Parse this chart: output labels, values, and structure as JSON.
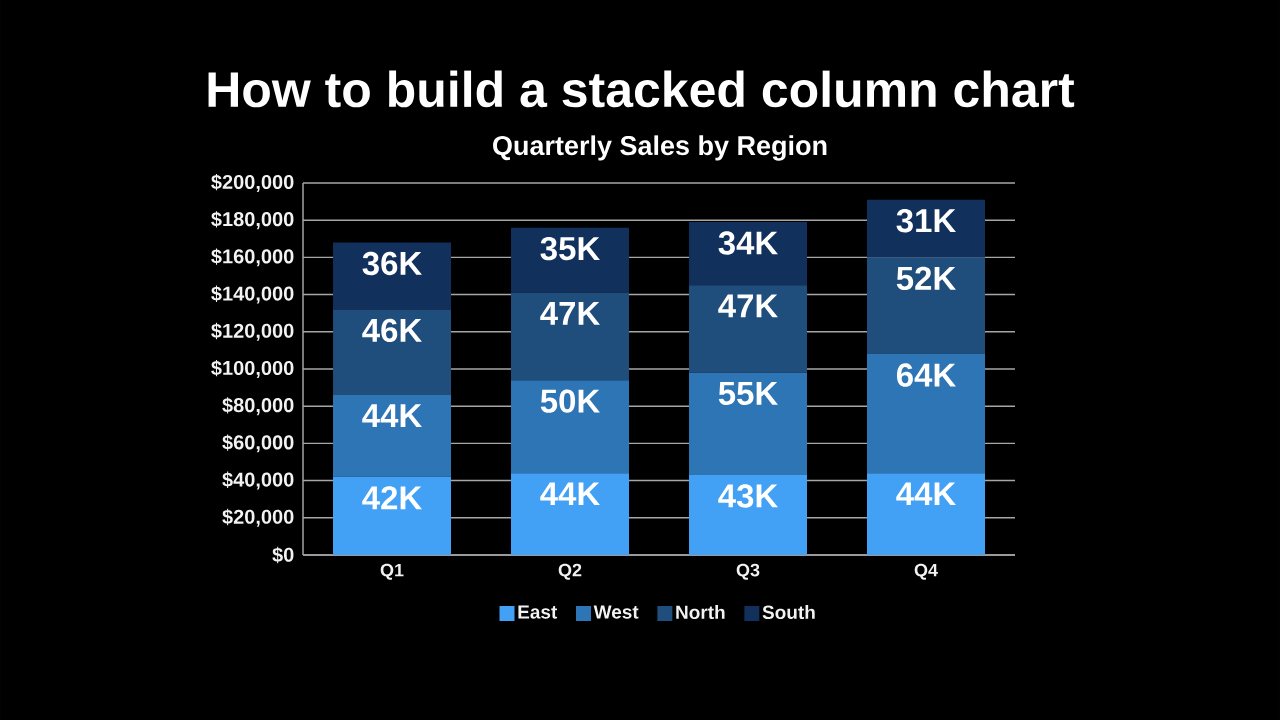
{
  "chart_data": {
    "type": "bar",
    "title": "How to build a stacked column chart",
    "subtitle": "Quarterly Sales by Region",
    "categories": [
      "Q1",
      "Q2",
      "Q3",
      "Q4"
    ],
    "stacked": true,
    "series": [
      {
        "name": "East",
        "color": "#42a0f5",
        "values": [
          42000,
          44000,
          43000,
          44000
        ],
        "value_labels": [
          "42K",
          "44K",
          "43K",
          "44K"
        ]
      },
      {
        "name": "West",
        "color": "#2e75b5",
        "values": [
          44000,
          50000,
          55000,
          64000
        ],
        "value_labels": [
          "44K",
          "50K",
          "55K",
          "64K"
        ]
      },
      {
        "name": "North",
        "color": "#1f4d7c",
        "values": [
          46000,
          47000,
          47000,
          52000
        ],
        "value_labels": [
          "46K",
          "47K",
          "47K",
          "52K"
        ]
      },
      {
        "name": "South",
        "color": "#11305c",
        "values": [
          36000,
          35000,
          34000,
          31000
        ],
        "value_labels": [
          "36K",
          "35K",
          "34K",
          "31K"
        ]
      }
    ],
    "ylim": [
      0,
      200000
    ],
    "yticks": [
      {
        "value": 0,
        "label": "$0"
      },
      {
        "value": 20000,
        "label": "$20,000"
      },
      {
        "value": 40000,
        "label": "$40,000"
      },
      {
        "value": 60000,
        "label": "$60,000"
      },
      {
        "value": 80000,
        "label": "$80,000"
      },
      {
        "value": 100000,
        "label": "$100,000"
      },
      {
        "value": 120000,
        "label": "$120,000"
      },
      {
        "value": 140000,
        "label": "$140,000"
      },
      {
        "value": 160000,
        "label": "$160,000"
      },
      {
        "value": 180000,
        "label": "$180,000"
      },
      {
        "value": 200000,
        "label": "$200,000"
      }
    ],
    "grid": "y",
    "legend": "bottom"
  }
}
